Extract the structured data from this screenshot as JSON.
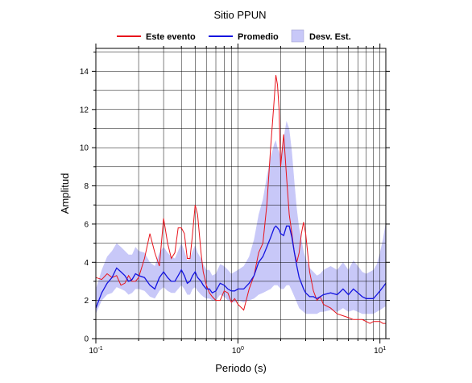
{
  "chart_data": {
    "type": "line",
    "title": "Sitio PPUN",
    "xlabel": "Periodo (s)",
    "ylabel": "Amplitud",
    "xscale": "log",
    "xlim": [
      0.1,
      11
    ],
    "ylim": [
      0,
      15.2
    ],
    "grid": true,
    "legend_position": "top",
    "x_tick_labels": [
      {
        "value": 0.1,
        "base": "10",
        "exp": "-1"
      },
      {
        "value": 1,
        "base": "10",
        "exp": "0"
      },
      {
        "value": 10,
        "base": "10",
        "exp": "1"
      }
    ],
    "y_ticks": [
      0,
      2,
      4,
      6,
      8,
      10,
      12,
      14
    ],
    "x": [
      0.1,
      0.11,
      0.12,
      0.13,
      0.14,
      0.15,
      0.16,
      0.17,
      0.18,
      0.19,
      0.2,
      0.22,
      0.24,
      0.26,
      0.28,
      0.3,
      0.32,
      0.34,
      0.36,
      0.38,
      0.4,
      0.42,
      0.44,
      0.46,
      0.48,
      0.5,
      0.52,
      0.55,
      0.57,
      0.6,
      0.63,
      0.66,
      0.7,
      0.75,
      0.8,
      0.85,
      0.9,
      0.95,
      1.0,
      1.1,
      1.2,
      1.3,
      1.4,
      1.5,
      1.6,
      1.7,
      1.8,
      1.85,
      1.9,
      1.95,
      2.0,
      2.1,
      2.2,
      2.3,
      2.4,
      2.5,
      2.6,
      2.7,
      2.8,
      2.9,
      3.0,
      3.2,
      3.4,
      3.6,
      3.8,
      4.0,
      4.5,
      5.0,
      5.5,
      6.0,
      6.5,
      7.0,
      7.5,
      8.0,
      8.5,
      9.0,
      9.5,
      10.0,
      10.5,
      11.0
    ],
    "series": [
      {
        "name": "Este evento",
        "color": "#e8141c",
        "values": [
          3.2,
          3.1,
          3.4,
          3.2,
          3.3,
          2.8,
          2.9,
          3.3,
          3.0,
          3.0,
          3.2,
          4.2,
          5.5,
          4.5,
          3.8,
          6.3,
          5.0,
          4.2,
          4.5,
          5.8,
          5.8,
          5.5,
          4.2,
          4.2,
          5.5,
          7.0,
          6.5,
          4.5,
          3.5,
          2.8,
          2.4,
          2.2,
          2.0,
          2.0,
          2.5,
          2.4,
          1.9,
          2.1,
          1.8,
          1.5,
          2.6,
          3.3,
          4.5,
          5.0,
          7.0,
          10.0,
          12.5,
          13.8,
          13.3,
          12.0,
          9.0,
          10.7,
          8.5,
          6.5,
          5.5,
          4.5,
          4.0,
          4.5,
          5.5,
          6.1,
          5.5,
          3.5,
          2.5,
          2.0,
          2.2,
          1.8,
          1.6,
          1.3,
          1.2,
          1.1,
          1.0,
          1.0,
          1.0,
          0.9,
          0.8,
          0.9,
          0.9,
          0.9,
          0.8,
          0.8
        ]
      },
      {
        "name": "Promedio",
        "color": "#1414e0",
        "values": [
          1.6,
          2.4,
          2.9,
          3.2,
          3.7,
          3.5,
          3.3,
          3.0,
          3.1,
          3.4,
          3.3,
          3.2,
          2.8,
          2.6,
          3.2,
          3.5,
          3.2,
          3.0,
          3.0,
          3.3,
          3.6,
          3.3,
          2.9,
          3.0,
          3.3,
          3.5,
          3.2,
          3.0,
          2.8,
          2.6,
          2.6,
          2.4,
          2.5,
          2.9,
          2.8,
          2.6,
          2.5,
          2.5,
          2.6,
          2.6,
          2.9,
          3.3,
          4.0,
          4.3,
          4.8,
          5.3,
          5.8,
          5.9,
          5.8,
          5.7,
          5.5,
          5.4,
          5.9,
          5.9,
          5.3,
          4.5,
          3.8,
          3.2,
          2.9,
          2.6,
          2.4,
          2.2,
          2.2,
          2.1,
          2.2,
          2.3,
          2.4,
          2.3,
          2.6,
          2.3,
          2.6,
          2.4,
          2.2,
          2.1,
          2.1,
          2.1,
          2.3,
          2.5,
          2.7,
          2.9
        ]
      }
    ],
    "band": {
      "name": "Desv. Est.",
      "color": "#c8c8f8",
      "lower": [
        1.3,
        2.0,
        2.3,
        2.4,
        2.7,
        2.6,
        2.5,
        2.3,
        2.4,
        2.6,
        2.6,
        2.5,
        2.2,
        2.1,
        2.5,
        2.7,
        2.5,
        2.4,
        2.4,
        2.6,
        2.8,
        2.6,
        2.3,
        2.3,
        2.6,
        2.7,
        2.5,
        2.3,
        2.2,
        2.1,
        2.1,
        2.0,
        2.0,
        2.3,
        2.2,
        2.0,
        1.9,
        1.9,
        2.0,
        1.9,
        2.0,
        2.1,
        2.3,
        2.4,
        2.5,
        2.6,
        2.8,
        2.8,
        2.8,
        2.7,
        2.6,
        2.6,
        2.8,
        2.8,
        2.5,
        2.2,
        1.9,
        1.6,
        1.5,
        1.4,
        1.3,
        1.3,
        1.3,
        1.3,
        1.4,
        1.4,
        1.5,
        1.4,
        1.6,
        1.4,
        1.5,
        1.4,
        1.3,
        1.3,
        1.3,
        1.3,
        1.4,
        1.5,
        1.6,
        1.7
      ],
      "upper": [
        2.6,
        3.6,
        4.3,
        4.6,
        5.0,
        4.8,
        4.6,
        4.4,
        4.4,
        4.8,
        4.6,
        4.5,
        4.0,
        3.8,
        4.5,
        4.8,
        4.5,
        4.3,
        4.2,
        4.6,
        5.0,
        4.6,
        4.1,
        4.2,
        4.6,
        4.9,
        4.5,
        4.2,
        3.9,
        3.6,
        3.6,
        3.3,
        3.4,
        3.9,
        3.8,
        3.6,
        3.4,
        3.5,
        3.6,
        3.8,
        4.3,
        5.2,
        6.5,
        7.3,
        8.5,
        9.5,
        10.2,
        10.4,
        10.0,
        9.8,
        9.5,
        10.5,
        11.4,
        11.0,
        9.8,
        8.2,
        6.8,
        5.8,
        5.2,
        4.6,
        4.2,
        3.7,
        3.5,
        3.3,
        3.4,
        3.6,
        3.8,
        3.6,
        4.0,
        3.6,
        4.1,
        3.8,
        3.5,
        3.4,
        3.5,
        3.6,
        3.9,
        4.5,
        5.2,
        6.1
      ]
    }
  }
}
